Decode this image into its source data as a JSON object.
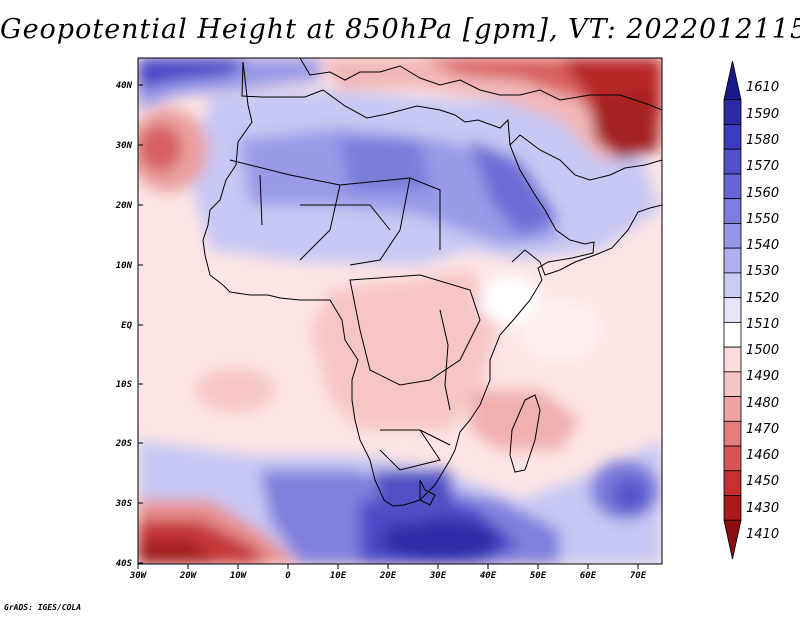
{
  "title": "Geopotential Height at 850hPa [gpm], VT: 2022012115",
  "footer": "GrADS: IGES/COLA",
  "map": {
    "lat_labels": [
      "40N",
      "30N",
      "20N",
      "10N",
      "EQ",
      "10S",
      "20S",
      "30S",
      "40S"
    ],
    "lon_labels": [
      "30W",
      "20W",
      "10W",
      "0",
      "10E",
      "20E",
      "30E",
      "40E",
      "50E",
      "60E",
      "70E"
    ]
  },
  "colorbar": {
    "levels": [
      "1610",
      "1590",
      "1580",
      "1570",
      "1560",
      "1550",
      "1540",
      "1530",
      "1520",
      "1510",
      "1500",
      "1490",
      "1480",
      "1470",
      "1460",
      "1450",
      "1430",
      "1410"
    ],
    "colors": [
      "#1a1a8c",
      "#2a2aa6",
      "#3b3bbd",
      "#5050cc",
      "#6565d6",
      "#7d7de0",
      "#9595e8",
      "#b0b0f0",
      "#cbcbf6",
      "#e6e6fb",
      "#ffffff",
      "#fbdcdc",
      "#f5c4c4",
      "#eda3a3",
      "#e37d7d",
      "#d65656",
      "#c63030",
      "#a91a1a",
      "#8b0d0d"
    ]
  }
}
